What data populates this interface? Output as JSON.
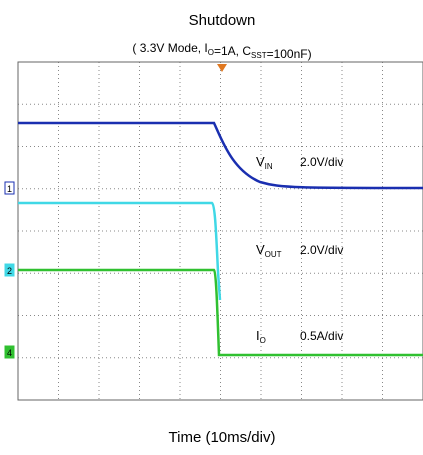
{
  "title": "Shutdown",
  "subtitle": [
    {
      "text": "( 3.3V Mode, I"
    },
    {
      "sub": "O"
    },
    {
      "text": "=1A, C"
    },
    {
      "sub": "SST"
    },
    {
      "text": "=100nF)"
    }
  ],
  "traces": [
    {
      "marker": "1",
      "name": "V",
      "sub": "IN",
      "scale": "2.0V/div"
    },
    {
      "marker": "2",
      "name": "V",
      "sub": "OUT",
      "scale": "2.0V/div"
    },
    {
      "marker": "4",
      "name": "I",
      "sub": "O",
      "scale": "0.5A/div"
    }
  ],
  "x_label": "Time (10ms/div)"
}
